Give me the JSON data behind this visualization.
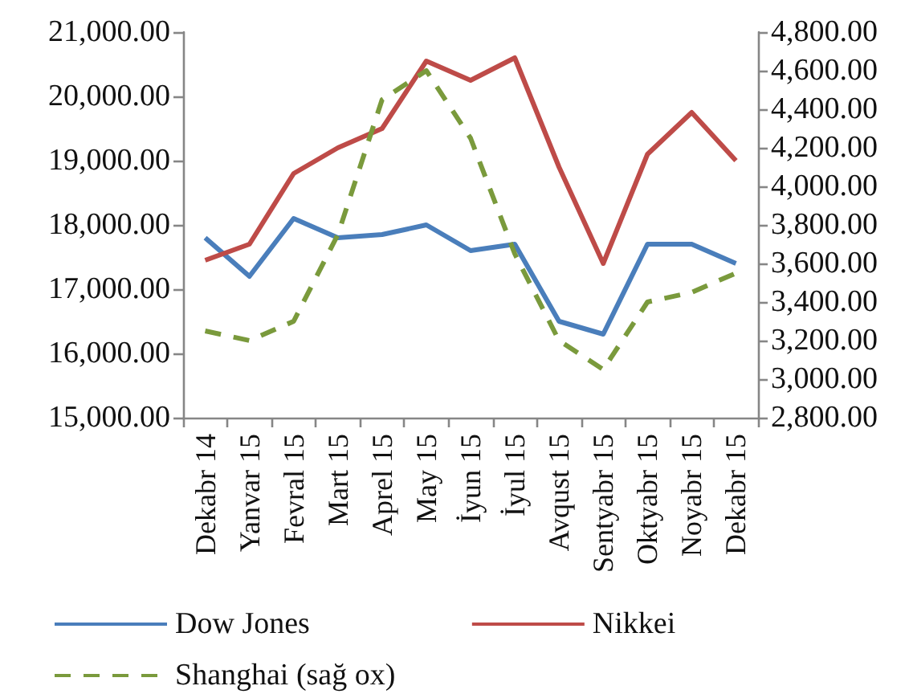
{
  "chart_data": {
    "type": "line",
    "categories": [
      "Dekabr 14",
      "Yanvar 15",
      "Fevral 15",
      "Mart 15",
      "Aprel 15",
      "May 15",
      "İyun 15",
      "İyul 15",
      "Avqust 15",
      "Sentyabr 15",
      "Oktyabr 15",
      "Noyabr 15",
      "Dekabr 15"
    ],
    "series": [
      {
        "name": "Dow Jones",
        "color": "#4a7ebb",
        "values": [
          17800,
          17200,
          18100,
          17800,
          17850,
          18000,
          17600,
          17700,
          16500,
          16300,
          17700,
          17700,
          17400
        ]
      },
      {
        "name": "Nikkei",
        "color": "#be4b48",
        "values": [
          17450,
          17700,
          18800,
          19200,
          19500,
          20550,
          20250,
          20600,
          18900,
          17400,
          19100,
          19750,
          19000
        ]
      },
      {
        "name": "Shanghai (sağ ox)",
        "color": "#7a9a3c",
        "axis": "y2",
        "line_style": "dashed",
        "values": [
          3250,
          3200,
          3300,
          3750,
          4450,
          4600,
          4250,
          3650,
          3200,
          3050,
          3400,
          3450,
          3550
        ]
      }
    ],
    "ylim": [
      15000,
      21000
    ],
    "yticks": [
      {
        "value": 15000,
        "label": "15,000.00"
      },
      {
        "value": 16000,
        "label": "16,000.00"
      },
      {
        "value": 17000,
        "label": "17,000.00"
      },
      {
        "value": 18000,
        "label": "18,000.00"
      },
      {
        "value": 19000,
        "label": "19,000.00"
      },
      {
        "value": 20000,
        "label": "20,000.00"
      },
      {
        "value": 21000,
        "label": "21,000.00"
      }
    ],
    "y2lim": [
      2800,
      4800
    ],
    "y2ticks": [
      {
        "value": 2800,
        "label": "2,800.00"
      },
      {
        "value": 3000,
        "label": "3,000.00"
      },
      {
        "value": 3200,
        "label": "3,200.00"
      },
      {
        "value": 3400,
        "label": "3,400.00"
      },
      {
        "value": 3600,
        "label": "3,600.00"
      },
      {
        "value": 3800,
        "label": "3,800.00"
      },
      {
        "value": 4000,
        "label": "4,000.00"
      },
      {
        "value": 4200,
        "label": "4,200.00"
      },
      {
        "value": 4400,
        "label": "4,400.00"
      },
      {
        "value": 4600,
        "label": "4,600.00"
      },
      {
        "value": 4800,
        "label": "4,800.00"
      }
    ],
    "legend": "bottom",
    "marker": "none",
    "line_style": "solid"
  }
}
